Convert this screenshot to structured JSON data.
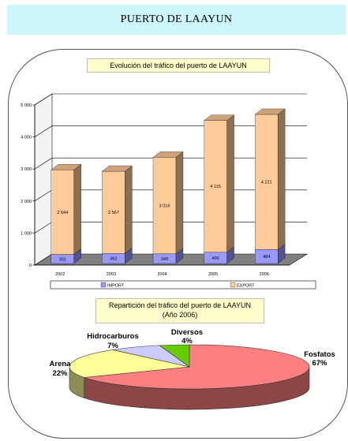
{
  "header": {
    "title": "PUERTO DE LAAYUN"
  },
  "colors": {
    "banner_bg": "#cdf6fb",
    "title_box_bg": "#ffffcc",
    "import": "#9999ff",
    "export": "#ffcc99",
    "fosfatos": "#ff8080",
    "arena": "#ffff99",
    "hidrocarburos": "#ccccff",
    "diversos": "#66cc00"
  },
  "chart_data": [
    {
      "type": "bar",
      "title": "Evolución del tráfico del puerto de LAAYUN",
      "categories": [
        "2002",
        "2003",
        "2004",
        "2005",
        "2006"
      ],
      "series": [
        {
          "name": "IMPORT",
          "values": [
            331,
            362,
            349,
            400,
            484
          ]
        },
        {
          "name": "EXPORT",
          "values": [
            2644,
            2567,
            3016,
            4115,
            4221
          ]
        }
      ],
      "data_labels": {
        "IMPORT": [
          "331",
          "362",
          "349",
          "400",
          "484"
        ],
        "EXPORT": [
          "2 644",
          "2 567",
          "3 016",
          "4 115",
          "4 221"
        ]
      },
      "stacked": true,
      "three_d": true,
      "ylim": [
        0,
        5000
      ],
      "yticks": [
        0,
        1000,
        2000,
        3000,
        4000,
        5000
      ],
      "ytick_labels": [
        "0",
        "1 000",
        "2 000",
        "3 000",
        "4 000",
        "5 000"
      ],
      "grid": true,
      "legend_position": "bottom"
    },
    {
      "type": "pie",
      "title": "Repartición del tráfico del puerto de LAAYUN",
      "subtitle": "(Año 2006)",
      "three_d": true,
      "slices": [
        {
          "label": "Fosfatos",
          "percent_label": "67%",
          "value": 67
        },
        {
          "label": "Arena",
          "percent_label": "22%",
          "value": 22
        },
        {
          "label": "Hidrocarburos",
          "percent_label": "7%",
          "value": 7
        },
        {
          "label": "Diversos",
          "percent_label": "4%",
          "value": 4
        }
      ]
    }
  ]
}
